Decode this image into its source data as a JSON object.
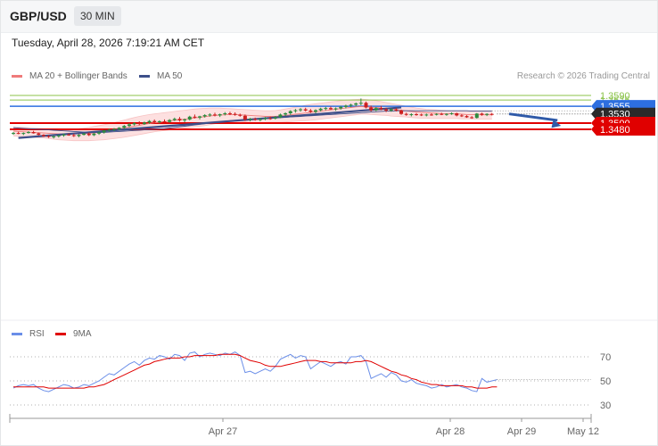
{
  "header": {
    "symbol": "GBP/USD",
    "timeframe": "30 MIN"
  },
  "timestamp": "Tuesday, April 28, 2026 7:19:21 AM CET",
  "legend": {
    "ma_label": "MA 20 + Bollinger Bands",
    "ma50_label": "MA 50",
    "rsi_label": "RSI",
    "rsi_ma_label": "9MA"
  },
  "credit": "Research © 2026 Trading Central",
  "colors": {
    "up": "#2e8b3e",
    "down": "#cc1f1f",
    "ma20": "#ef7b7b",
    "band": "#fde0e0",
    "ma50": "#3d4f8a",
    "trend": "#3d4f8a",
    "pivot": "#2d6fe0",
    "support": "#e00000",
    "resistance": "#8bc34a",
    "current": "#2a2a2a",
    "rsi": "#6a8ee8",
    "rsi_ma": "#e00000"
  },
  "chart_data": [
    {
      "type": "candlestick",
      "title": "",
      "y_range": [
        1.3426,
        1.3612
      ],
      "levels": [
        {
          "name": "resistance 2",
          "value": 1.359,
          "label": "1.3590",
          "style": "resistance"
        },
        {
          "name": "resistance 1",
          "value": 1.3575,
          "label": "1.3575",
          "style": "resistance"
        },
        {
          "name": "pivot",
          "value": 1.3555,
          "label": "1.3555",
          "style": "pivot"
        },
        {
          "name": "last price",
          "value": 1.353,
          "label": "1.3530",
          "style": "current"
        },
        {
          "name": "support 1",
          "value": 1.35,
          "label": "1.3500",
          "style": "support"
        },
        {
          "name": "support 2",
          "value": 1.348,
          "label": "1.3480",
          "style": "support"
        }
      ],
      "candles": [
        [
          1.3466,
          1.3471,
          1.3462,
          1.3468
        ],
        [
          1.3468,
          1.3472,
          1.3464,
          1.3465
        ],
        [
          1.3465,
          1.347,
          1.3461,
          1.3468
        ],
        [
          1.3468,
          1.3474,
          1.3466,
          1.3471
        ],
        [
          1.3471,
          1.3475,
          1.3466,
          1.3467
        ],
        [
          1.3467,
          1.3469,
          1.346,
          1.3462
        ],
        [
          1.3462,
          1.3464,
          1.3455,
          1.3458
        ],
        [
          1.3458,
          1.3461,
          1.3452,
          1.3455
        ],
        [
          1.3455,
          1.346,
          1.345,
          1.3457
        ],
        [
          1.3457,
          1.3462,
          1.3453,
          1.346
        ],
        [
          1.346,
          1.3466,
          1.3456,
          1.3463
        ],
        [
          1.3463,
          1.3467,
          1.3459,
          1.3461
        ],
        [
          1.3461,
          1.3466,
          1.3455,
          1.3458
        ],
        [
          1.3458,
          1.3464,
          1.3454,
          1.3462
        ],
        [
          1.3462,
          1.3468,
          1.346,
          1.3466
        ],
        [
          1.3466,
          1.347,
          1.3458,
          1.3461
        ],
        [
          1.3461,
          1.3468,
          1.3458,
          1.3466
        ],
        [
          1.3466,
          1.3473,
          1.3462,
          1.347
        ],
        [
          1.347,
          1.3478,
          1.3466,
          1.3476
        ],
        [
          1.3476,
          1.3482,
          1.3472,
          1.3479
        ],
        [
          1.3479,
          1.3484,
          1.3474,
          1.3481
        ],
        [
          1.3481,
          1.3487,
          1.3477,
          1.3485
        ],
        [
          1.3485,
          1.3494,
          1.3481,
          1.3491
        ],
        [
          1.3491,
          1.35,
          1.3487,
          1.3496
        ],
        [
          1.3496,
          1.3503,
          1.3492,
          1.35
        ],
        [
          1.35,
          1.3506,
          1.3494,
          1.3497
        ],
        [
          1.3497,
          1.3505,
          1.3494,
          1.3502
        ],
        [
          1.3502,
          1.351,
          1.3498,
          1.3507
        ],
        [
          1.3507,
          1.3512,
          1.35,
          1.3503
        ],
        [
          1.3503,
          1.3509,
          1.3499,
          1.3506
        ],
        [
          1.3506,
          1.3512,
          1.3502,
          1.3504
        ],
        [
          1.3504,
          1.3513,
          1.3501,
          1.351
        ],
        [
          1.351,
          1.3518,
          1.3507,
          1.3514
        ],
        [
          1.3514,
          1.352,
          1.3505,
          1.3509
        ],
        [
          1.3509,
          1.3515,
          1.3503,
          1.3512
        ],
        [
          1.3512,
          1.3524,
          1.3509,
          1.3521
        ],
        [
          1.3521,
          1.3528,
          1.3515,
          1.3518
        ],
        [
          1.3518,
          1.3524,
          1.3512,
          1.3522
        ],
        [
          1.3522,
          1.3529,
          1.3518,
          1.3526
        ],
        [
          1.3526,
          1.3532,
          1.3521,
          1.3528
        ],
        [
          1.3528,
          1.3534,
          1.3522,
          1.3525
        ],
        [
          1.3525,
          1.3531,
          1.352,
          1.3529
        ],
        [
          1.3529,
          1.3536,
          1.3525,
          1.3532
        ],
        [
          1.3532,
          1.3537,
          1.3526,
          1.353
        ],
        [
          1.353,
          1.3535,
          1.3524,
          1.3527
        ],
        [
          1.3527,
          1.3531,
          1.3521,
          1.3524
        ],
        [
          1.3524,
          1.3528,
          1.3507,
          1.3512
        ],
        [
          1.3512,
          1.3517,
          1.3506,
          1.3514
        ],
        [
          1.3514,
          1.3518,
          1.3508,
          1.3511
        ],
        [
          1.3511,
          1.3517,
          1.3506,
          1.3513
        ],
        [
          1.3513,
          1.352,
          1.351,
          1.3516
        ],
        [
          1.3516,
          1.3521,
          1.3511,
          1.3515
        ],
        [
          1.3515,
          1.3523,
          1.3512,
          1.3519
        ],
        [
          1.3519,
          1.3531,
          1.3516,
          1.3528
        ],
        [
          1.3528,
          1.3535,
          1.3523,
          1.3532
        ],
        [
          1.3532,
          1.3542,
          1.3527,
          1.3539
        ],
        [
          1.3539,
          1.3546,
          1.3534,
          1.3542
        ],
        [
          1.3542,
          1.3549,
          1.3537,
          1.3545
        ],
        [
          1.3545,
          1.355,
          1.3538,
          1.3541
        ],
        [
          1.3541,
          1.3546,
          1.3533,
          1.3537
        ],
        [
          1.3537,
          1.3545,
          1.3532,
          1.3542
        ],
        [
          1.3542,
          1.355,
          1.3538,
          1.3547
        ],
        [
          1.3547,
          1.3553,
          1.3542,
          1.3549
        ],
        [
          1.3549,
          1.3554,
          1.3543,
          1.3545
        ],
        [
          1.3545,
          1.3551,
          1.354,
          1.3548
        ],
        [
          1.3548,
          1.3556,
          1.3544,
          1.3553
        ],
        [
          1.3553,
          1.356,
          1.3548,
          1.3557
        ],
        [
          1.3557,
          1.3563,
          1.3552,
          1.356
        ],
        [
          1.356,
          1.3567,
          1.3555,
          1.3564
        ],
        [
          1.3564,
          1.358,
          1.3558,
          1.3566
        ],
        [
          1.3566,
          1.357,
          1.3548,
          1.3551
        ],
        [
          1.3551,
          1.3557,
          1.3538,
          1.3542
        ],
        [
          1.3542,
          1.3552,
          1.3539,
          1.3549
        ],
        [
          1.3549,
          1.3556,
          1.3542,
          1.3545
        ],
        [
          1.3545,
          1.355,
          1.3536,
          1.3541
        ],
        [
          1.3541,
          1.3548,
          1.3537,
          1.3545
        ],
        [
          1.3545,
          1.3549,
          1.3538,
          1.3541
        ],
        [
          1.3541,
          1.3544,
          1.3527,
          1.353
        ],
        [
          1.353,
          1.3534,
          1.3524,
          1.3527
        ],
        [
          1.3527,
          1.3532,
          1.3522,
          1.3529
        ],
        [
          1.3529,
          1.3533,
          1.3524,
          1.3528
        ],
        [
          1.3528,
          1.3531,
          1.3523,
          1.3526
        ],
        [
          1.3526,
          1.3531,
          1.3522,
          1.3528
        ],
        [
          1.3528,
          1.3532,
          1.3524,
          1.3527
        ],
        [
          1.3527,
          1.3532,
          1.3525,
          1.353
        ],
        [
          1.353,
          1.3534,
          1.3526,
          1.3528
        ],
        [
          1.3528,
          1.3532,
          1.3524,
          1.353
        ],
        [
          1.353,
          1.3535,
          1.3527,
          1.3532
        ],
        [
          1.3532,
          1.3534,
          1.3522,
          1.3525
        ],
        [
          1.3525,
          1.3529,
          1.352,
          1.3523
        ],
        [
          1.3523,
          1.3526,
          1.3517,
          1.3519
        ],
        [
          1.3519,
          1.3523,
          1.3514,
          1.3517
        ],
        [
          1.3517,
          1.3533,
          1.3515,
          1.3531
        ],
        [
          1.3531,
          1.3534,
          1.3524,
          1.3527
        ],
        [
          1.3527,
          1.3532,
          1.3523,
          1.353
        ],
        [
          1.353,
          1.3533,
          1.3525,
          1.3528
        ]
      ],
      "ma20": [
        1.3474,
        1.3473,
        1.3472,
        1.3471,
        1.347,
        1.3469,
        1.3468,
        1.3467,
        1.3466,
        1.3465,
        1.3465,
        1.3465,
        1.3465,
        1.3465,
        1.3466,
        1.3467,
        1.3468,
        1.347,
        1.3472,
        1.3475,
        1.3478,
        1.3481,
        1.3484,
        1.3487,
        1.349,
        1.3493,
        1.3496,
        1.3499,
        1.3501,
        1.3503,
        1.3505,
        1.3507,
        1.3509,
        1.3511,
        1.3513,
        1.3515,
        1.3517,
        1.3519,
        1.3521,
        1.3523,
        1.3525,
        1.3526,
        1.3527,
        1.3528,
        1.3528,
        1.3527,
        1.3526,
        1.3525,
        1.3524,
        1.3523,
        1.3522,
        1.3522,
        1.3522,
        1.3523,
        1.3525,
        1.3527,
        1.3529,
        1.3531,
        1.3533,
        1.3535,
        1.3537,
        1.3539,
        1.3541,
        1.3543,
        1.3545,
        1.3547,
        1.3549,
        1.3551,
        1.3553,
        1.3554,
        1.3553,
        1.3552,
        1.3551,
        1.3549,
        1.3547,
        1.3546,
        1.3544,
        1.3542,
        1.354,
        1.3538,
        1.3536,
        1.3535,
        1.3534,
        1.3533,
        1.3532,
        1.3531,
        1.3531,
        1.353,
        1.353,
        1.3529,
        1.3528,
        1.3528,
        1.3527,
        1.3527,
        1.3527,
        1.3527
      ],
      "bb_upper": [
        1.3488,
        1.3487,
        1.3486,
        1.3485,
        1.3484,
        1.3483,
        1.3482,
        1.3481,
        1.348,
        1.348,
        1.348,
        1.348,
        1.3481,
        1.3482,
        1.3484,
        1.3486,
        1.3489,
        1.3492,
        1.3495,
        1.3498,
        1.3502,
        1.3506,
        1.351,
        1.3514,
        1.3518,
        1.3522,
        1.3525,
        1.3528,
        1.353,
        1.3532,
        1.3534,
        1.3536,
        1.3538,
        1.354,
        1.3542,
        1.3544,
        1.3546,
        1.3547,
        1.3548,
        1.3549,
        1.3549,
        1.3549,
        1.3548,
        1.3547,
        1.3546,
        1.3545,
        1.3544,
        1.3543,
        1.3542,
        1.3541,
        1.354,
        1.354,
        1.3541,
        1.3543,
        1.3546,
        1.3549,
        1.3552,
        1.3555,
        1.3558,
        1.3561,
        1.3563,
        1.3565,
        1.3567,
        1.3569,
        1.3571,
        1.3573,
        1.3575,
        1.3576,
        1.3577,
        1.3578,
        1.3577,
        1.3575,
        1.3573,
        1.357,
        1.3567,
        1.3564,
        1.3561,
        1.3558,
        1.3555,
        1.3552,
        1.3549,
        1.3547,
        1.3545,
        1.3544,
        1.3543,
        1.3542,
        1.3541,
        1.354,
        1.354,
        1.354,
        1.354,
        1.354,
        1.354,
        1.354,
        1.354,
        1.354
      ],
      "bb_lower": [
        1.3458,
        1.3457,
        1.3456,
        1.3455,
        1.3454,
        1.3453,
        1.3452,
        1.345,
        1.3448,
        1.3446,
        1.3445,
        1.3444,
        1.3443,
        1.3443,
        1.3443,
        1.3443,
        1.3444,
        1.3445,
        1.3446,
        1.3448,
        1.345,
        1.3452,
        1.3454,
        1.3457,
        1.346,
        1.3463,
        1.3466,
        1.3469,
        1.3472,
        1.3474,
        1.3476,
        1.3478,
        1.348,
        1.3482,
        1.3484,
        1.3486,
        1.3488,
        1.349,
        1.3492,
        1.3495,
        1.3498,
        1.35,
        1.3502,
        1.3504,
        1.3505,
        1.3505,
        1.3504,
        1.3503,
        1.3502,
        1.3502,
        1.3502,
        1.3503,
        1.3503,
        1.3503,
        1.3504,
        1.3505,
        1.3506,
        1.3507,
        1.3508,
        1.3509,
        1.3511,
        1.3513,
        1.3515,
        1.3517,
        1.3519,
        1.3521,
        1.3523,
        1.3525,
        1.3527,
        1.3529,
        1.3529,
        1.3528,
        1.3527,
        1.3526,
        1.3525,
        1.3523,
        1.3522,
        1.3521,
        1.352,
        1.3518,
        1.3517,
        1.3516,
        1.3516,
        1.3515,
        1.3515,
        1.3515,
        1.3515,
        1.3515,
        1.3515,
        1.3514,
        1.3514,
        1.3514,
        1.3513,
        1.3513,
        1.3513,
        1.3513
      ],
      "ma50": [
        1.3485,
        1.3484,
        1.3483,
        1.3482,
        1.3481,
        1.348,
        1.3479,
        1.3478,
        1.3477,
        1.3476,
        1.3475,
        1.3474,
        1.3473,
        1.3472,
        1.3471,
        1.347,
        1.347,
        1.347,
        1.347,
        1.3471,
        1.3472,
        1.3473,
        1.3474,
        1.3475,
        1.3476,
        1.3477,
        1.3478,
        1.3479,
        1.348,
        1.3481,
        1.3482,
        1.3484,
        1.3486,
        1.3488,
        1.349,
        1.3492,
        1.3494,
        1.3496,
        1.3498,
        1.35,
        1.3502,
        1.3504,
        1.3506,
        1.3508,
        1.3509,
        1.351,
        1.3511,
        1.3512,
        1.3513,
        1.3514,
        1.3515,
        1.3516,
        1.3517,
        1.3518,
        1.3519,
        1.352,
        1.3521,
        1.3522,
        1.3523,
        1.3524,
        1.3525,
        1.3526,
        1.3527,
        1.3528,
        1.3529,
        1.353,
        1.3531,
        1.3532,
        1.3533,
        1.3534,
        1.3535,
        1.3536,
        1.3537,
        1.3538,
        1.3539,
        1.3539,
        1.354,
        1.354,
        1.354,
        1.354,
        1.354,
        1.354,
        1.354,
        1.354,
        1.354,
        1.354,
        1.354,
        1.354,
        1.354,
        1.354,
        1.354,
        1.3539,
        1.3539,
        1.3539,
        1.3539,
        1.3539
      ],
      "trendline": {
        "from": [
          1,
          1.3452
        ],
        "to": [
          77,
          1.3551
        ]
      },
      "projection": {
        "from": [
          97,
          1.353
        ],
        "to": [
          108,
          1.348
        ]
      }
    },
    {
      "type": "line",
      "title": "",
      "y_ticks": [
        70,
        50,
        30
      ],
      "y_range": [
        24,
        76
      ],
      "rsi": [
        44,
        46,
        47,
        46,
        47,
        44,
        42,
        41,
        43,
        45,
        47,
        46,
        44,
        45,
        47,
        46,
        48,
        50,
        53,
        56,
        55,
        58,
        61,
        64,
        66,
        63,
        67,
        69,
        68,
        71,
        70,
        68,
        72,
        71,
        67,
        73,
        74,
        70,
        72,
        73,
        72,
        71,
        73,
        72,
        74,
        71,
        57,
        58,
        56,
        58,
        60,
        58,
        62,
        68,
        70,
        72,
        69,
        71,
        70,
        60,
        63,
        66,
        64,
        62,
        65,
        66,
        64,
        70,
        70,
        71,
        66,
        52,
        54,
        56,
        53,
        57,
        55,
        50,
        49,
        51,
        48,
        47,
        46,
        44,
        45,
        47,
        45,
        46,
        47,
        45,
        44,
        42,
        41,
        52,
        49,
        50,
        51
      ],
      "rsi_ma": [
        45,
        45,
        45,
        45,
        45,
        45,
        45,
        44,
        44,
        44,
        44,
        44,
        44,
        44,
        44,
        45,
        45,
        46,
        47,
        49,
        51,
        53,
        55,
        57,
        59,
        61,
        63,
        64,
        66,
        67,
        68,
        69,
        69,
        69,
        70,
        70,
        71,
        71,
        71,
        71,
        71,
        72,
        72,
        72,
        72,
        71,
        69,
        67,
        66,
        65,
        63,
        62,
        62,
        62,
        63,
        64,
        65,
        66,
        67,
        67,
        67,
        66,
        66,
        65,
        65,
        65,
        65,
        65,
        66,
        66,
        67,
        66,
        64,
        62,
        60,
        58,
        57,
        55,
        54,
        52,
        51,
        49,
        48,
        47,
        47,
        46,
        46,
        46,
        46,
        46,
        45,
        45,
        44,
        44,
        44,
        45,
        45
      ]
    }
  ],
  "x_axis": {
    "labels": [
      "Apr 27",
      "Apr 28",
      "Apr 29",
      "May 12"
    ]
  }
}
